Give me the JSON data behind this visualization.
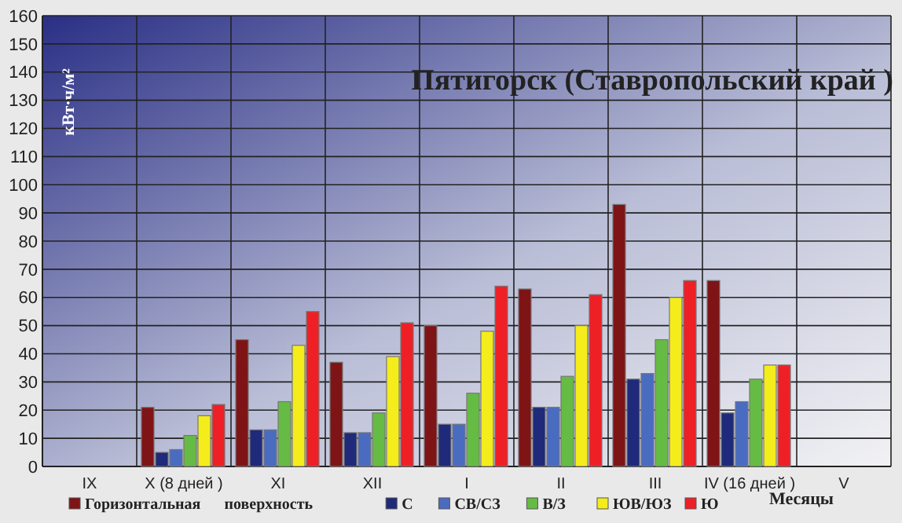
{
  "chart_data": {
    "type": "bar",
    "title": "Пятигорск  (Ставропольский край )",
    "ylabel": "кВт·ч/м²",
    "xlabel": "Месяцы",
    "categories": [
      "IX",
      "X (8 дней )",
      "XI",
      "XII",
      "I",
      "II",
      "III",
      "IV (16 дней )",
      "V"
    ],
    "series": [
      {
        "name": "Горизонтальная      поверхность",
        "color": "#7f1416",
        "values": [
          null,
          21,
          45,
          37,
          50,
          63,
          93,
          66,
          null
        ]
      },
      {
        "name": "С",
        "color": "#1f2a7a",
        "values": [
          null,
          5,
          13,
          12,
          15,
          21,
          31,
          19,
          null
        ]
      },
      {
        "name": "СВ/СЗ",
        "color": "#4a6cc0",
        "values": [
          null,
          6,
          13,
          12,
          15,
          21,
          33,
          23,
          null
        ]
      },
      {
        "name": "В/З",
        "color": "#66bb44",
        "values": [
          null,
          11,
          23,
          19,
          26,
          32,
          45,
          31,
          null
        ]
      },
      {
        "name": "ЮВ/ЮЗ",
        "color": "#f5ec1c",
        "values": [
          null,
          18,
          43,
          39,
          48,
          50,
          60,
          36,
          null
        ]
      },
      {
        "name": "Ю",
        "color": "#ee2026",
        "values": [
          null,
          22,
          55,
          51,
          64,
          61,
          66,
          36,
          null
        ]
      }
    ],
    "ylim": [
      0,
      160
    ],
    "yticks": [
      0,
      10,
      20,
      30,
      40,
      50,
      60,
      70,
      80,
      90,
      100,
      110,
      120,
      130,
      140,
      150,
      160
    ],
    "grid": true,
    "legend": "bottom"
  }
}
